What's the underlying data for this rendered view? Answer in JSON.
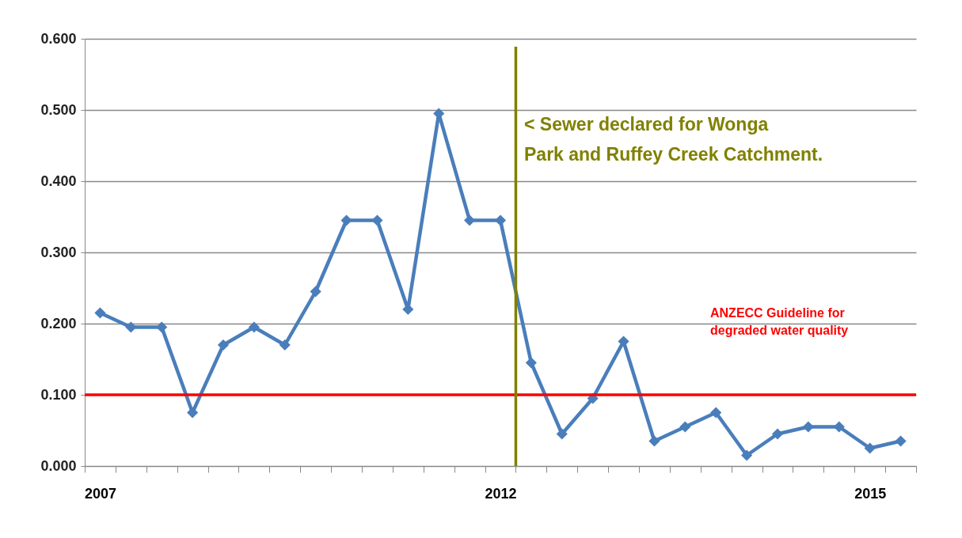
{
  "chart_data": {
    "type": "line",
    "categories": [
      "2007",
      null,
      null,
      null,
      null,
      null,
      null,
      null,
      null,
      null,
      null,
      null,
      null,
      "2012",
      null,
      null,
      null,
      null,
      null,
      null,
      null,
      null,
      null,
      null,
      null,
      "2015",
      null
    ],
    "series": [
      {
        "color": "#4a7ebb",
        "values": [
          0.215,
          0.195,
          0.195,
          0.075,
          0.17,
          0.195,
          0.17,
          0.245,
          0.345,
          0.345,
          0.22,
          0.495,
          0.345,
          0.345,
          0.145,
          0.045,
          0.095,
          0.175,
          0.035,
          0.055,
          0.075,
          0.015,
          0.045,
          0.055,
          0.055,
          0.025,
          0.035
        ]
      }
    ],
    "ylim": [
      0,
      0.6
    ],
    "yticks": [
      {
        "value": 0,
        "label": "0.000"
      },
      {
        "value": 0.1,
        "label": "0.100"
      },
      {
        "value": 0.2,
        "label": "0.200"
      },
      {
        "value": 0.3,
        "label": "0.300"
      },
      {
        "value": 0.4,
        "label": "0.400"
      },
      {
        "value": 0.5,
        "label": "0.500"
      },
      {
        "value": 0.6,
        "label": "0.600"
      }
    ],
    "grid": "y",
    "marker": "diamond",
    "line_style": "solid",
    "ref_lines": [
      {
        "axis": "y",
        "value": 0.1,
        "label": "ANZECC Guideline for degraded water quality",
        "color": "#ff0000"
      },
      {
        "axis": "x",
        "value": "2012",
        "label": "< Sewer declared for Wonga Park and Ruffey Creek Catchment.",
        "color": "#808000"
      }
    ]
  }
}
